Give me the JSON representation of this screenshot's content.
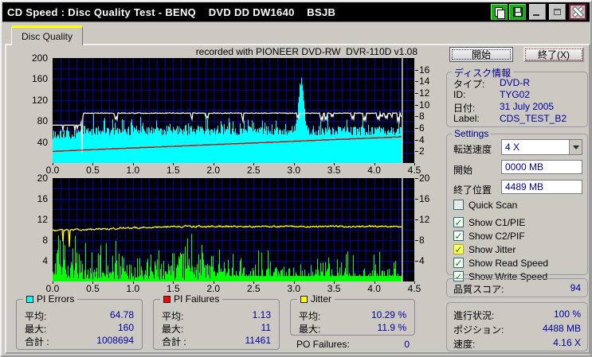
{
  "window": {
    "title": "CD Speed : Disc Quality Test - BENQ    DVD DD DW1640    BSJB",
    "titlebar_buttons": [
      "copy-icon",
      "save-icon",
      "minimize-icon",
      "maximize-icon",
      "close-icon"
    ]
  },
  "tab": {
    "label": "Disc Quality"
  },
  "chart_header": "recorded with PIONEER DVD-RW  DVR-110D v1.08",
  "chart_data": [
    {
      "type": "area",
      "title": "PI Errors / Speed vs disc position (GB)",
      "x_range": [
        0,
        4.5
      ],
      "x_ticks": [
        "0.0",
        "0.5",
        "1.0",
        "1.5",
        "2.0",
        "2.5",
        "3.0",
        "3.5",
        "4.0",
        "4.5"
      ],
      "data_end_x": 4.35,
      "y_left": {
        "range": [
          0,
          200
        ],
        "ticks": [
          200,
          160,
          120,
          80,
          40
        ]
      },
      "y_right": {
        "range": [
          0,
          18
        ],
        "ticks": [
          16,
          14,
          12,
          10,
          8,
          6,
          4,
          2
        ]
      },
      "series": [
        {
          "name": "PI Errors",
          "style": "area",
          "color": "#00ffff",
          "axis": "left",
          "avg": 64.78,
          "max": 160,
          "peak_x": 3.09
        },
        {
          "name": "Write Speed",
          "style": "line",
          "color": "#ffffff",
          "axis": "right",
          "levels": [
            {
              "from": 0,
              "to": 0.36,
              "value": 6.5
            },
            {
              "from": 0.38,
              "to": 4.35,
              "value": 8.55
            }
          ],
          "dip": {
            "x": 0.366,
            "value": 1.3
          }
        },
        {
          "name": "Read Speed",
          "style": "line",
          "color": "#e00000",
          "axis": "right",
          "start_value": 2.0,
          "end_value": 4.5
        }
      ],
      "cursor_x": 4.35,
      "background": "#000000",
      "grid_color": "#0000a8",
      "legend_position": "bottom"
    },
    {
      "type": "bar",
      "title": "PI Failures / Jitter vs disc position (GB)",
      "x_range": [
        0,
        4.5
      ],
      "x_ticks": [
        "0.0",
        "0.5",
        "1.0",
        "1.5",
        "2.0",
        "2.5",
        "3.0",
        "3.5",
        "4.0",
        "4.5"
      ],
      "data_end_x": 4.35,
      "y_left": {
        "range": [
          0,
          20
        ],
        "ticks": [
          20,
          16,
          12,
          8,
          4
        ]
      },
      "y_right": {
        "range": [
          0,
          20
        ],
        "ticks": [
          20,
          16,
          12,
          8,
          4
        ]
      },
      "series": [
        {
          "name": "PI Failures",
          "style": "bars",
          "color": "#00ff00",
          "avg": 1.13,
          "max": 11
        },
        {
          "name": "Jitter",
          "style": "line",
          "color": "#ffff00",
          "avg_pct": 10.29,
          "max_pct": 11.9
        }
      ],
      "cursor_x": 4.35,
      "background": "#000000",
      "grid_color": "#0000a8"
    }
  ],
  "legend": {
    "pi_errors": {
      "title": "PI Errors",
      "swatch": "#00ffff",
      "rows": [
        [
          "平均:",
          "64.78"
        ],
        [
          "最大:",
          "160"
        ],
        [
          "合計 :",
          "1008694"
        ]
      ]
    },
    "pi_failures": {
      "title": "PI Failures",
      "swatch": "#ff0000",
      "rows": [
        [
          "平均:",
          "1.13"
        ],
        [
          "最大:",
          "11"
        ],
        [
          "合計 :",
          "11461"
        ]
      ]
    },
    "jitter": {
      "title": "Jitter",
      "swatch": "#ffff00",
      "rows": [
        [
          "平均:",
          "10.29 %"
        ],
        [
          "最大:",
          "11.9 %"
        ]
      ]
    },
    "po_failures": {
      "label": "PO Failures:",
      "value": "0"
    }
  },
  "panel": {
    "start_button": "開始",
    "exit_button": "終了(X)",
    "disc_info": {
      "title": "ディスク情報",
      "rows": [
        [
          "タイプ:",
          "DVD-R"
        ],
        [
          "ID:",
          "TYG02"
        ],
        [
          "日付:",
          "31 July 2005"
        ],
        [
          "Label:",
          "CDS_TEST_B2"
        ]
      ]
    },
    "settings": {
      "title": "Settings",
      "speed_label": "転送速度",
      "speed_value": "4 X",
      "start_label": "開始",
      "start_value": "0000 MB",
      "end_label": "終了位置",
      "end_value": "4489 MB",
      "checkboxes": [
        {
          "label": "Quick Scan",
          "checked": false,
          "gap_after": true
        },
        {
          "label": "Show C1/PIE",
          "checked": true
        },
        {
          "label": "Show C2/PIF",
          "checked": true
        },
        {
          "label": "Show Jitter",
          "checked": true,
          "highlight": true
        },
        {
          "label": "Show Read Speed",
          "checked": true
        },
        {
          "label": "Show Write Speed",
          "checked": true
        }
      ]
    },
    "quality": {
      "label": "品質スコア:",
      "value": "94"
    },
    "status": {
      "rows": [
        [
          "進行状況:",
          "100 %"
        ],
        [
          "ポジション:",
          "4488 MB"
        ],
        [
          "速度:",
          "4.16 X"
        ]
      ]
    }
  },
  "colors": {
    "window_bg": "#ccc9c3",
    "titlebar_bg": "#000000",
    "value_text": "#00009c",
    "tab_accent": "#ffff00",
    "pi_errors": "#00ffff",
    "pi_failures_bar": "#00ff00",
    "jitter": "#ffff00",
    "write_speed": "#ffffff",
    "read_speed": "#e00000"
  }
}
